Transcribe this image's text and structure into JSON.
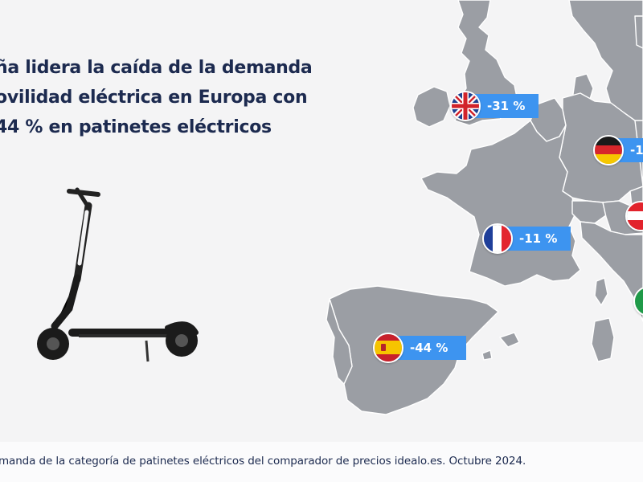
{
  "headline": {
    "line1": "ña lidera la caída de la demanda",
    "line2": "ovilidad eléctrica en Europa con",
    "line3": "44 % en patinetes eléctricos"
  },
  "countries": [
    {
      "key": "uk",
      "flag": "united-kingdom-flag-icon",
      "label": "-31 %"
    },
    {
      "key": "de",
      "flag": "germany-flag-icon",
      "label": "-1"
    },
    {
      "key": "at",
      "flag": "austria-flag-icon",
      "label": ""
    },
    {
      "key": "fr",
      "flag": "france-flag-icon",
      "label": "-11 %"
    },
    {
      "key": "it",
      "flag": "italy-flag-icon",
      "label": ""
    },
    {
      "key": "es",
      "flag": "spain-flag-icon",
      "label": "-44 %"
    }
  ],
  "footer": {
    "text": "manda de la categoría de patinetes eléctricos del comparador de precios idealo.es. Octubre 2024."
  },
  "colors": {
    "background": "#f4f4f5",
    "land": "#9b9ea4",
    "border": "#ffffff",
    "headline": "#1c2a4f",
    "badge": "#3d94f0",
    "badge_text": "#ffffff"
  }
}
